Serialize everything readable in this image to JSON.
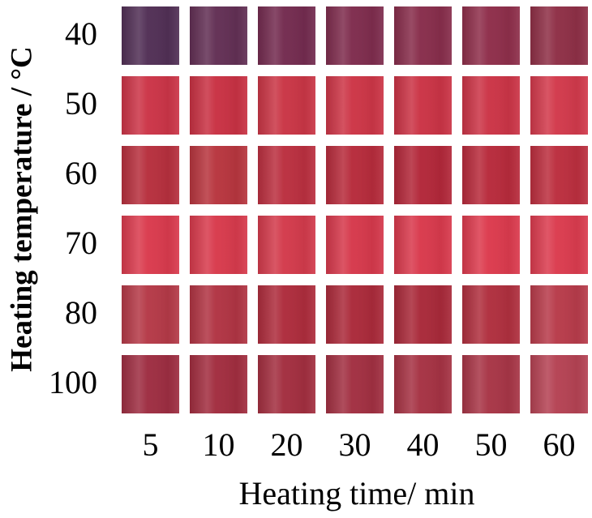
{
  "y_axis_title": "Heating temperature / °C",
  "x_axis_title": "Heating time/ min",
  "row_labels": [
    "40",
    "50",
    "60",
    "70",
    "80",
    "100"
  ],
  "column_labels": [
    "5",
    "10",
    "20",
    "30",
    "40",
    "50",
    "60"
  ]
}
